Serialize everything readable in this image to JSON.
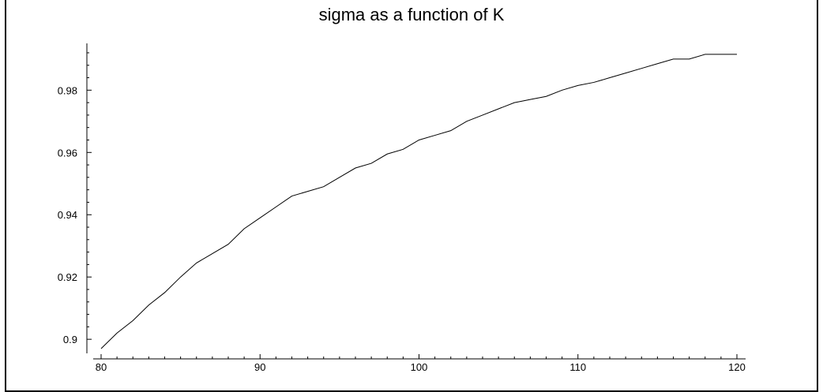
{
  "chart_data": {
    "type": "line",
    "title": "sigma as a function of K",
    "xlabel": "",
    "ylabel": "",
    "xlim": [
      80,
      120
    ],
    "ylim": [
      0.897,
      0.993
    ],
    "xticks": [
      80,
      90,
      100,
      110,
      120
    ],
    "yticks": [
      0.9,
      0.92,
      0.94,
      0.96,
      0.98
    ],
    "ytick_labels": [
      "0.9",
      "0.92",
      "0.94",
      "0.96",
      "0.98"
    ],
    "grid": false,
    "series": [
      {
        "x": [
          80,
          81,
          82,
          83,
          84,
          85,
          86,
          87,
          88,
          89,
          90,
          91,
          92,
          93,
          94,
          95,
          96,
          97,
          98,
          99,
          100,
          101,
          102,
          103,
          104,
          105,
          106,
          107,
          108,
          109,
          110,
          111,
          112,
          113,
          114,
          115,
          116,
          117,
          118,
          119,
          120
        ],
        "y": [
          0.897,
          0.902,
          0.906,
          0.911,
          0.915,
          0.92,
          0.9245,
          0.9275,
          0.9305,
          0.9355,
          0.939,
          0.9425,
          0.946,
          0.9475,
          0.949,
          0.952,
          0.955,
          0.9565,
          0.9595,
          0.961,
          0.964,
          0.9655,
          0.967,
          0.97,
          0.972,
          0.974,
          0.976,
          0.977,
          0.978,
          0.98,
          0.9815,
          0.9825,
          0.984,
          0.9855,
          0.987,
          0.9885,
          0.99,
          0.99,
          0.9915,
          0.9915,
          0.9915
        ]
      }
    ]
  }
}
